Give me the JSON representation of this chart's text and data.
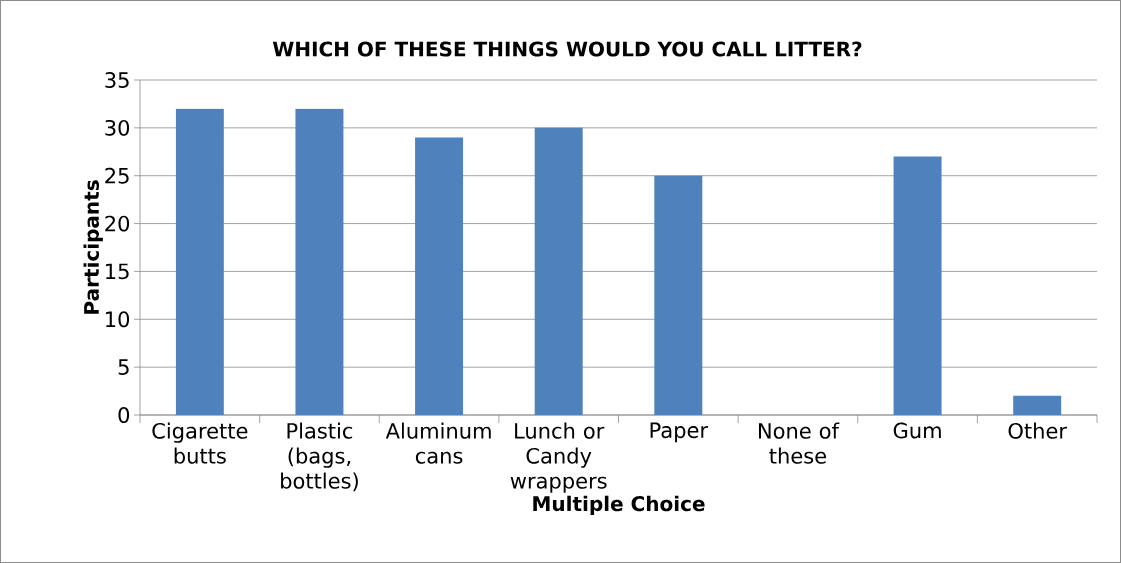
{
  "chart_data": {
    "type": "bar",
    "title": "WHICH OF THESE THINGS WOULD YOU CALL LITTER?",
    "xlabel": "Multiple Choice",
    "ylabel": "Participants",
    "categories": [
      "Cigarette butts",
      "Plastic (bags, bottles)",
      "Aluminum cans",
      "Lunch or Candy wrappers",
      "Paper",
      "None of these",
      "Gum",
      "Other"
    ],
    "values": [
      32,
      32,
      29,
      30,
      25,
      0,
      27,
      2
    ],
    "color": "#4f81bd",
    "ylim": [
      0,
      35
    ],
    "yticks": [
      0,
      5,
      10,
      15,
      20,
      25,
      30,
      35
    ],
    "grid": "y"
  }
}
